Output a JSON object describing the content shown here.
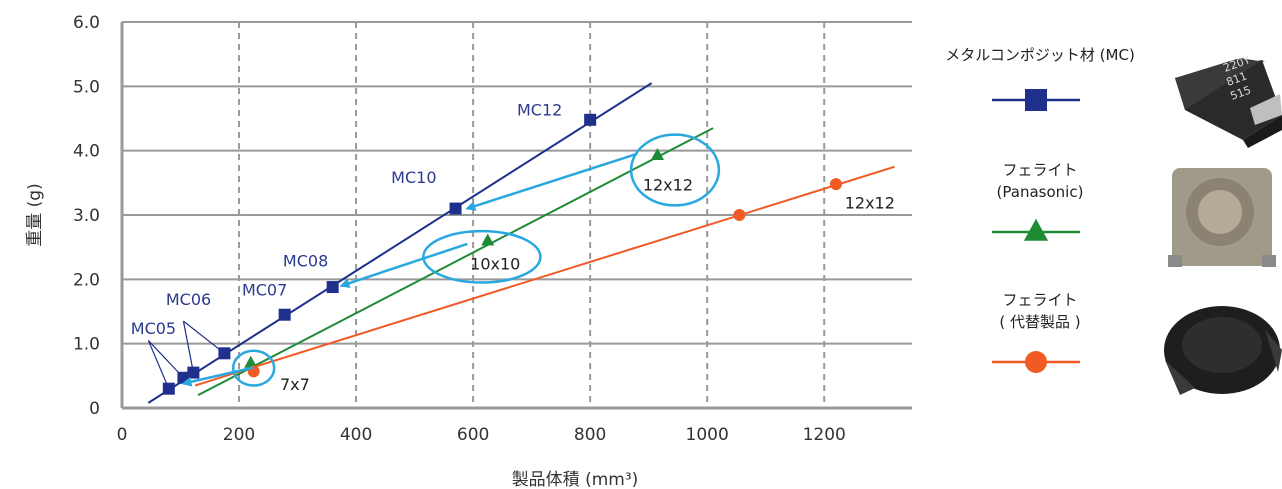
{
  "chart_data": {
    "type": "scatter",
    "xlabel": "製品体積 (mm³)",
    "ylabel": "重量 (g)",
    "xlim": [
      0,
      1350
    ],
    "ylim": [
      0,
      6.0
    ],
    "x_ticks": [
      "0",
      "200",
      "400",
      "600",
      "800",
      "1000",
      "1200"
    ],
    "y_ticks": [
      "0",
      "1.0",
      "2.0",
      "3.0",
      "4.0",
      "5.0",
      "6.0"
    ],
    "grid": {
      "x": "dashed",
      "y": "solid"
    },
    "legend_position": "right",
    "series": [
      {
        "name": "メタルコンポジット材 (MC)",
        "legend_line2": "",
        "color": "#1f2f8c",
        "marker": "square",
        "points": [
          [
            80,
            0.3
          ],
          [
            105,
            0.47
          ],
          [
            122,
            0.55
          ],
          [
            175,
            0.85
          ],
          [
            278,
            1.45
          ],
          [
            360,
            1.88
          ],
          [
            570,
            3.1
          ],
          [
            800,
            4.48
          ]
        ],
        "fit": [
          [
            45,
            0.08
          ],
          [
            905,
            5.05
          ]
        ]
      },
      {
        "name": "フェライト",
        "legend_line2": "(Panasonic)",
        "color": "#1e8c35",
        "marker": "triangle",
        "points": [
          [
            220,
            0.7
          ],
          [
            625,
            2.6
          ],
          [
            915,
            3.93
          ]
        ],
        "fit": [
          [
            130,
            0.2
          ],
          [
            1010,
            4.35
          ]
        ]
      },
      {
        "name": "フェライト",
        "legend_line2": "( 代替製品 )",
        "color": "#f15a24",
        "marker": "circle",
        "points": [
          [
            225,
            0.57
          ],
          [
            1055,
            3.0
          ],
          [
            1220,
            3.48
          ]
        ],
        "fit": [
          [
            125,
            0.35
          ],
          [
            1320,
            3.75
          ]
        ]
      }
    ],
    "mc_labels": [
      {
        "text": "MC05",
        "x": 15,
        "y": 1.15
      },
      {
        "text": "MC06",
        "x": 75,
        "y": 1.6
      },
      {
        "text": "MC07",
        "x": 205,
        "y": 1.75
      },
      {
        "text": "MC08",
        "x": 275,
        "y": 2.2
      },
      {
        "text": "MC10",
        "x": 460,
        "y": 3.5
      },
      {
        "text": "MC12",
        "x": 675,
        "y": 4.55
      }
    ],
    "size_labels": [
      {
        "text": "7x7",
        "x": 270,
        "y": 0.28
      },
      {
        "text": "10x10",
        "x": 595,
        "y": 2.15
      },
      {
        "text": "12x12",
        "x": 890,
        "y": 3.38
      },
      {
        "text": "12x12",
        "x": 1235,
        "y": 3.1
      }
    ],
    "comparisons": [
      {
        "from": [
          225,
          0.63
        ],
        "to": [
          105,
          0.38
        ]
      },
      {
        "from": [
          590,
          2.55
        ],
        "to": [
          375,
          1.9
        ]
      },
      {
        "from": [
          880,
          3.95
        ],
        "to": [
          590,
          3.1
        ]
      }
    ],
    "ellipse_color": "#29a8e0",
    "arrow_color": "#29a8e0",
    "ellipses": [
      {
        "cx": 225,
        "cy": 0.62,
        "rx": 35,
        "ry": 0.27
      },
      {
        "cx": 615,
        "cy": 2.35,
        "rx": 100,
        "ry": 0.4
      },
      {
        "cx": 945,
        "cy": 3.7,
        "rx": 75,
        "ry": 0.55
      },
      {
        "cx": 1058,
        "cy": 3.0,
        "rx": 0,
        "ry": 0
      }
    ]
  }
}
